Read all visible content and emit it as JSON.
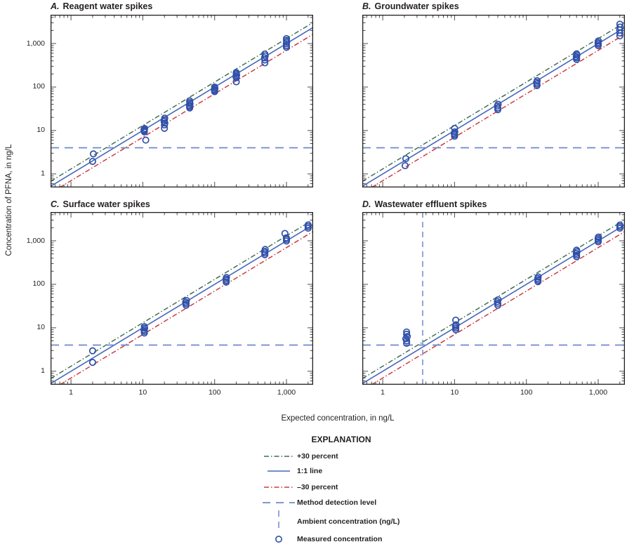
{
  "figure": {
    "x_axis_label": "Expected concentration, in ng/L",
    "y_axis_label": "Concentration of PFNA, in ng/L"
  },
  "colors": {
    "plus30_line": "#3f6f52",
    "one_to_one_line": "#4667bd",
    "minus30_line": "#cb3b3f",
    "method_detection_line": "#6d89cc",
    "ambient_line": "#6d89cc",
    "marker": "#2f4fa8",
    "border": "#231f20",
    "tick": "#4d4d4d"
  },
  "legend": {
    "title": "EXPLANATION",
    "items": [
      {
        "label": "+30 percent",
        "swatch": "dashdot-line",
        "color": "#3f6f52"
      },
      {
        "label": "1:1 line",
        "swatch": "solid-line",
        "color": "#4667bd"
      },
      {
        "label": "–30 percent",
        "swatch": "dashdot-line",
        "color": "#cb3b3f"
      },
      {
        "label": "Method detection level",
        "swatch": "dashed-line",
        "color": "#6d89cc"
      },
      {
        "label": "Ambient concentration (ng/L)",
        "swatch": "vertical-dashed-line",
        "color": "#6d89cc"
      },
      {
        "label": "Measured concentration",
        "swatch": "open-circle",
        "color": "#2f4fa8"
      }
    ]
  },
  "chart_data": {
    "type": "scatter",
    "x_scale": "log",
    "y_scale": "log",
    "xlim": [
      0.52,
      2350
    ],
    "ylim": [
      0.49,
      4600
    ],
    "xlabel": "Expected concentration, in ng/L",
    "ylabel": "Concentration of PFNA, in ng/L",
    "grid": false,
    "labeled_x_ticks": [
      {
        "value": 1,
        "label": "1"
      },
      {
        "value": 10,
        "label": "10"
      },
      {
        "value": 100,
        "label": "100"
      },
      {
        "value": 1000,
        "label": "1,000"
      }
    ],
    "labeled_y_ticks": [
      {
        "value": 1,
        "label": "1"
      },
      {
        "value": 10,
        "label": "10"
      },
      {
        "value": 100,
        "label": "100"
      },
      {
        "value": 1000,
        "label": "1,000"
      }
    ],
    "reference_lines": {
      "plus30": {
        "label": "+30 percent",
        "factor": 1.3,
        "style": "dashdot",
        "color": "#3f6f52"
      },
      "one_to_one": {
        "label": "1:1 line",
        "factor": 1.0,
        "style": "solid",
        "color": "#4667bd"
      },
      "minus30": {
        "label": "–30 percent",
        "factor": 0.7,
        "style": "dashdot",
        "color": "#cb3b3f"
      },
      "method_detection_level": {
        "label": "Method detection level",
        "value_ng_per_L": 4,
        "style": "dashed",
        "color": "#6d89cc"
      }
    },
    "marker": {
      "label": "Measured concentration",
      "shape": "open-circle",
      "color": "#2f4fa8"
    },
    "panels": [
      {
        "id": "A",
        "letter": "A.",
        "title": "Reagent water spikes",
        "points": [
          [
            2,
            1.95
          ],
          [
            2.05,
            2.9
          ],
          [
            10.5,
            9.3
          ],
          [
            10.45,
            9.9
          ],
          [
            10.4,
            10.5
          ],
          [
            10.6,
            11.1
          ],
          [
            11,
            6
          ],
          [
            20,
            11.2
          ],
          [
            20,
            13.4
          ],
          [
            20.3,
            14.8
          ],
          [
            19.8,
            16.2
          ],
          [
            20,
            17.6
          ],
          [
            20.2,
            19.2
          ],
          [
            45,
            33
          ],
          [
            45,
            35.5
          ],
          [
            44.5,
            38
          ],
          [
            45.5,
            41
          ],
          [
            45,
            44
          ],
          [
            45,
            48
          ],
          [
            100,
            78
          ],
          [
            100,
            83
          ],
          [
            99,
            88
          ],
          [
            101,
            94
          ],
          [
            100,
            100
          ],
          [
            200,
            132
          ],
          [
            200,
            163
          ],
          [
            198,
            175
          ],
          [
            202,
            188
          ],
          [
            200,
            202
          ],
          [
            200,
            215
          ],
          [
            500,
            360
          ],
          [
            500,
            420
          ],
          [
            495,
            470
          ],
          [
            505,
            520
          ],
          [
            500,
            575
          ],
          [
            1000,
            820
          ],
          [
            1000,
            900
          ],
          [
            995,
            990
          ],
          [
            1005,
            1080
          ],
          [
            1000,
            1180
          ],
          [
            1000,
            1300
          ]
        ]
      },
      {
        "id": "B",
        "letter": "B.",
        "title": "Groundwater spikes",
        "points": [
          [
            2.1,
            2.25
          ],
          [
            2.05,
            1.55
          ],
          [
            10,
            7.4
          ],
          [
            10,
            8
          ],
          [
            9.9,
            8.6
          ],
          [
            10.1,
            9.3
          ],
          [
            10,
            11.2
          ],
          [
            40,
            30
          ],
          [
            40,
            33
          ],
          [
            39.5,
            36.5
          ],
          [
            40.5,
            40
          ],
          [
            140,
            108
          ],
          [
            140,
            118
          ],
          [
            139,
            128
          ],
          [
            141,
            140
          ],
          [
            500,
            430
          ],
          [
            500,
            465
          ],
          [
            495,
            500
          ],
          [
            505,
            540
          ],
          [
            500,
            580
          ],
          [
            1000,
            900
          ],
          [
            1000,
            975
          ],
          [
            995,
            1050
          ],
          [
            1005,
            1150
          ],
          [
            2000,
            1500
          ],
          [
            2000,
            1750
          ],
          [
            1990,
            2050
          ],
          [
            2010,
            2400
          ],
          [
            2000,
            2800
          ]
        ]
      },
      {
        "id": "C",
        "letter": "C.",
        "title": "Surface water spikes",
        "points": [
          [
            2,
            2.95
          ],
          [
            2,
            1.6
          ],
          [
            10.5,
            7.6
          ],
          [
            10.5,
            8.3
          ],
          [
            10.4,
            9
          ],
          [
            10.6,
            9.8
          ],
          [
            10.5,
            10.6
          ],
          [
            40,
            33
          ],
          [
            40,
            36
          ],
          [
            39.5,
            39
          ],
          [
            40.5,
            42.5
          ],
          [
            145,
            112
          ],
          [
            145,
            122
          ],
          [
            144,
            132
          ],
          [
            146,
            143
          ],
          [
            500,
            480
          ],
          [
            500,
            525
          ],
          [
            495,
            570
          ],
          [
            505,
            635
          ],
          [
            1000,
            990
          ],
          [
            1000,
            1080
          ],
          [
            995,
            1170
          ],
          [
            950,
            1480
          ],
          [
            2000,
            1950
          ],
          [
            2000,
            2130
          ],
          [
            2005,
            2320
          ]
        ]
      },
      {
        "id": "D",
        "letter": "D.",
        "title": "Wastewater effluent spikes",
        "ambient_ng_per_L": 3.6,
        "points": [
          [
            2.15,
            4.4
          ],
          [
            2.15,
            5
          ],
          [
            2.1,
            5.6
          ],
          [
            2.2,
            6.3
          ],
          [
            2.15,
            7.1
          ],
          [
            2.15,
            8
          ],
          [
            10.4,
            9
          ],
          [
            10.4,
            9.9
          ],
          [
            10.3,
            10.8
          ],
          [
            10.5,
            11.7
          ],
          [
            10.4,
            15
          ],
          [
            40,
            33
          ],
          [
            40,
            36.5
          ],
          [
            39.5,
            40
          ],
          [
            40.5,
            44
          ],
          [
            145,
            115
          ],
          [
            145,
            125
          ],
          [
            144,
            136
          ],
          [
            146,
            148
          ],
          [
            500,
            430
          ],
          [
            500,
            470
          ],
          [
            495,
            515
          ],
          [
            505,
            560
          ],
          [
            500,
            610
          ],
          [
            1000,
            950
          ],
          [
            1000,
            1030
          ],
          [
            995,
            1120
          ],
          [
            1005,
            1220
          ],
          [
            2000,
            1950
          ],
          [
            2000,
            2120
          ],
          [
            2005,
            2300
          ]
        ]
      }
    ]
  }
}
